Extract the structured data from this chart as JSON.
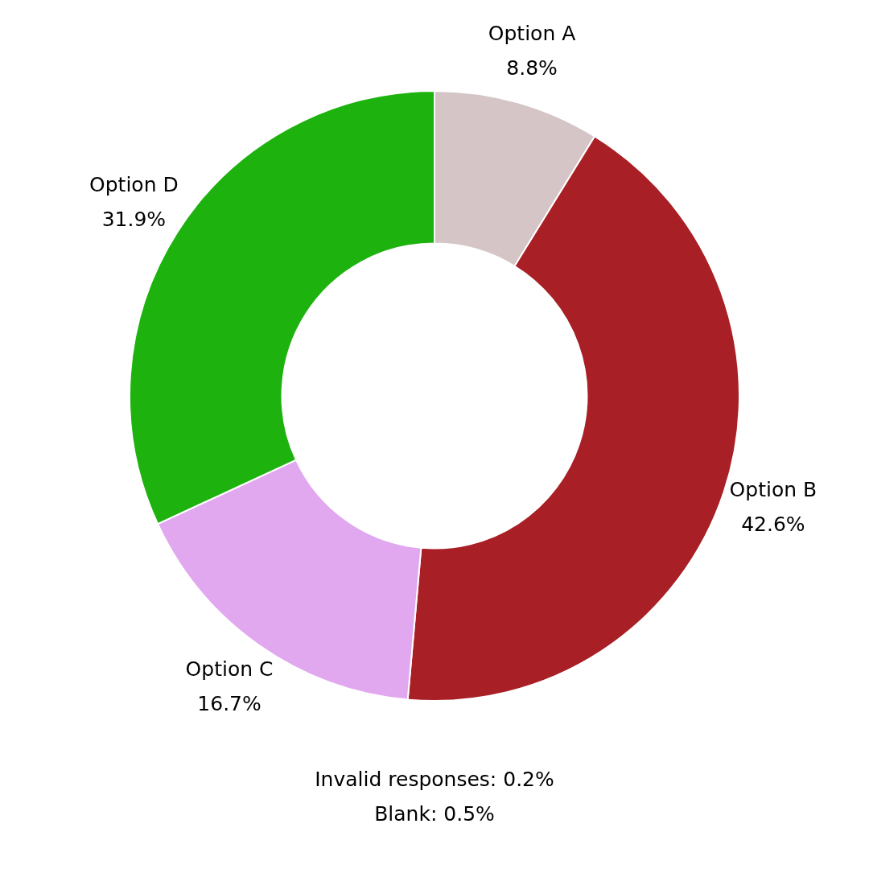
{
  "chart_data": {
    "type": "donut",
    "categories": [
      "Option A",
      "Option B",
      "Option C",
      "Option D"
    ],
    "values": [
      8.8,
      42.6,
      16.7,
      31.9
    ],
    "value_labels": [
      "8.8%",
      "42.6%",
      "16.7%",
      "31.9%"
    ],
    "colors": [
      "#d5c5c6",
      "#a81f25",
      "#e1a8ef",
      "#1eb20f"
    ],
    "legend": false,
    "annotations": [
      "Invalid responses: 0.2%",
      "Blank: 0.5%"
    ]
  }
}
